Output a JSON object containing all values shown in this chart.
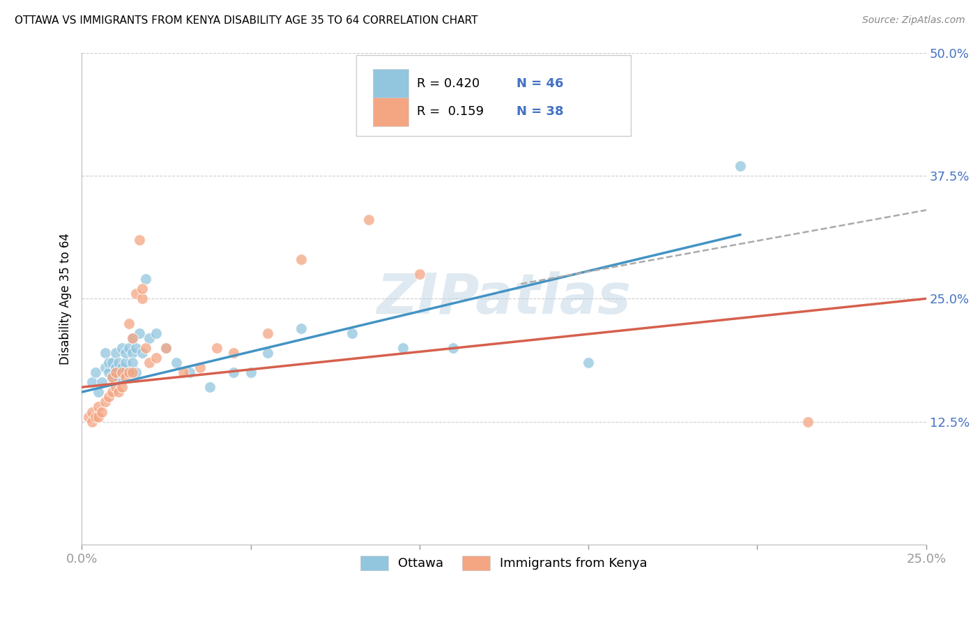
{
  "title": "OTTAWA VS IMMIGRANTS FROM KENYA DISABILITY AGE 35 TO 64 CORRELATION CHART",
  "source": "Source: ZipAtlas.com",
  "ylabel": "Disability Age 35 to 64",
  "legend_label_1": "Ottawa",
  "legend_label_2": "Immigrants from Kenya",
  "R1": 0.42,
  "N1": 46,
  "R2": 0.159,
  "N2": 38,
  "xlim": [
    0.0,
    0.25
  ],
  "ylim": [
    0.0,
    0.5
  ],
  "xticks": [
    0.0,
    0.05,
    0.1,
    0.15,
    0.2,
    0.25
  ],
  "xticklabels": [
    "0.0%",
    "",
    "",
    "",
    "",
    "25.0%"
  ],
  "yticks": [
    0.0,
    0.125,
    0.25,
    0.375,
    0.5
  ],
  "yticklabels": [
    "",
    "12.5%",
    "25.0%",
    "37.5%",
    "50.0%"
  ],
  "color_ottawa": "#92c5de",
  "color_kenya": "#f4a582",
  "color_line_ottawa": "#4393c3",
  "color_line_kenya": "#d6604d",
  "color_line_dashed": "#aaaaaa",
  "watermark": "ZIPatlas",
  "ottawa_x": [
    0.003,
    0.004,
    0.005,
    0.006,
    0.007,
    0.007,
    0.008,
    0.008,
    0.009,
    0.009,
    0.01,
    0.01,
    0.01,
    0.011,
    0.011,
    0.012,
    0.012,
    0.012,
    0.013,
    0.013,
    0.013,
    0.014,
    0.014,
    0.015,
    0.015,
    0.015,
    0.016,
    0.016,
    0.017,
    0.018,
    0.019,
    0.02,
    0.022,
    0.025,
    0.028,
    0.032,
    0.038,
    0.045,
    0.05,
    0.055,
    0.065,
    0.08,
    0.095,
    0.11,
    0.15,
    0.195
  ],
  "ottawa_y": [
    0.165,
    0.175,
    0.155,
    0.165,
    0.18,
    0.195,
    0.175,
    0.185,
    0.17,
    0.185,
    0.175,
    0.18,
    0.195,
    0.17,
    0.185,
    0.175,
    0.18,
    0.2,
    0.175,
    0.185,
    0.195,
    0.175,
    0.2,
    0.195,
    0.185,
    0.21,
    0.175,
    0.2,
    0.215,
    0.195,
    0.27,
    0.21,
    0.215,
    0.2,
    0.185,
    0.175,
    0.16,
    0.175,
    0.175,
    0.195,
    0.22,
    0.215,
    0.2,
    0.2,
    0.185,
    0.385
  ],
  "kenya_x": [
    0.002,
    0.003,
    0.003,
    0.004,
    0.005,
    0.005,
    0.006,
    0.007,
    0.008,
    0.009,
    0.009,
    0.01,
    0.01,
    0.011,
    0.012,
    0.012,
    0.013,
    0.014,
    0.014,
    0.015,
    0.015,
    0.016,
    0.017,
    0.018,
    0.018,
    0.019,
    0.02,
    0.022,
    0.025,
    0.03,
    0.035,
    0.04,
    0.045,
    0.055,
    0.065,
    0.085,
    0.1,
    0.215
  ],
  "kenya_y": [
    0.13,
    0.125,
    0.135,
    0.13,
    0.14,
    0.13,
    0.135,
    0.145,
    0.15,
    0.155,
    0.17,
    0.16,
    0.175,
    0.155,
    0.16,
    0.175,
    0.17,
    0.175,
    0.225,
    0.175,
    0.21,
    0.255,
    0.31,
    0.25,
    0.26,
    0.2,
    0.185,
    0.19,
    0.2,
    0.175,
    0.18,
    0.2,
    0.195,
    0.215,
    0.29,
    0.33,
    0.275,
    0.125
  ],
  "blue_line_x": [
    0.0,
    0.195
  ],
  "blue_line_y": [
    0.155,
    0.315
  ],
  "pink_line_x": [
    0.0,
    0.25
  ],
  "pink_line_y": [
    0.16,
    0.25
  ],
  "dashed_line_x": [
    0.13,
    0.25
  ],
  "dashed_line_y": [
    0.265,
    0.34
  ]
}
